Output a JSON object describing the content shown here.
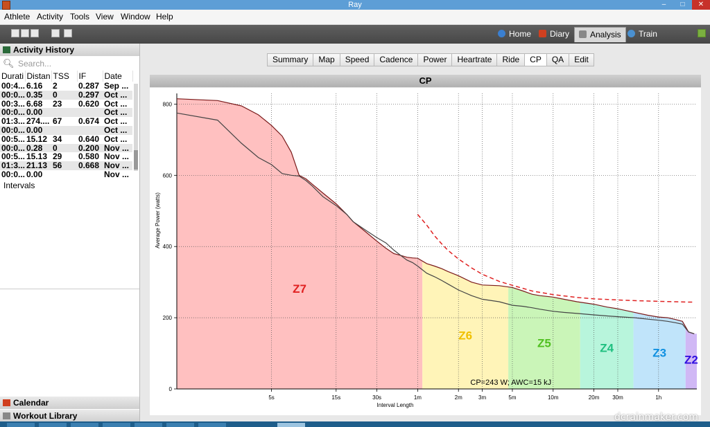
{
  "window": {
    "title": "Ray",
    "min": "–",
    "max": "□",
    "close": "✕"
  },
  "menu": [
    "Athlete",
    "Activity",
    "Tools",
    "View",
    "Window",
    "Help"
  ],
  "nav": {
    "home": "Home",
    "diary": "Diary",
    "analysis": "Analysis",
    "train": "Train"
  },
  "sidebar": {
    "activity_history": "Activity History",
    "search_placeholder": "Search...",
    "columns": [
      "Durati",
      "Distan",
      "TSS",
      "IF",
      "Date"
    ],
    "rows": [
      [
        "00:4...",
        "6.16",
        "2",
        "0.287",
        "Sep ..."
      ],
      [
        "00:0...",
        "0.35",
        "0",
        "0.297",
        "Oct ..."
      ],
      [
        "00:3...",
        "6.68",
        "23",
        "0.620",
        "Oct ..."
      ],
      [
        "00:0...",
        "0.00",
        "",
        "",
        "Oct ..."
      ],
      [
        "01:3...",
        "274....",
        "67",
        "0.674",
        "Oct ..."
      ],
      [
        "00:0...",
        "0.00",
        "",
        "",
        "Oct ..."
      ],
      [
        "00:5...",
        "15.12",
        "34",
        "0.640",
        "Oct ..."
      ],
      [
        "00:0...",
        "0.28",
        "0",
        "0.200",
        "Nov ..."
      ],
      [
        "00:5...",
        "15.13",
        "29",
        "0.580",
        "Nov ..."
      ],
      [
        "01:3...",
        "21.13",
        "56",
        "0.668",
        "Nov ..."
      ],
      [
        "00:0...",
        "0.00",
        "",
        "",
        "Nov ..."
      ]
    ],
    "intervals": "Intervals",
    "calendar": "Calendar",
    "workout_library": "Workout Library"
  },
  "tabs": [
    "Summary",
    "Map",
    "Speed",
    "Cadence",
    "Power",
    "Heartrate",
    "Ride",
    "CP",
    "QA",
    "Edit"
  ],
  "active_tab": "CP",
  "watermark": "dcrainmaker.com",
  "chart_data": {
    "type": "area",
    "title": "CP",
    "xlabel": "Interval Length",
    "ylabel": "Average Power (watts)",
    "x_scale": "log",
    "x_ticks": [
      "5s",
      "15s",
      "30s",
      "1m",
      "2m",
      "3m",
      "5m",
      "10m",
      "20m",
      "30m",
      "1h"
    ],
    "x_tick_seconds": [
      5,
      15,
      30,
      60,
      120,
      180,
      300,
      600,
      1200,
      1800,
      3600
    ],
    "xlim_seconds": [
      1,
      6900
    ],
    "y_ticks": [
      0,
      200,
      400,
      600,
      800
    ],
    "ylim": [
      0,
      830
    ],
    "grid": true,
    "annotation": "CP=243 W; AWC=15 kJ",
    "series": [
      {
        "name": "",
        "color": "#7a1a1a",
        "x": [
          1,
          2,
          3,
          4,
          5,
          6,
          7,
          8,
          9,
          10,
          12,
          15,
          18,
          20,
          25,
          30,
          35,
          40,
          45,
          50,
          55,
          60,
          70,
          80,
          90,
          100,
          120,
          150,
          180,
          240,
          300,
          360,
          420,
          480,
          600,
          720,
          900,
          1200,
          1500,
          1800,
          2400,
          3000,
          3600,
          4200,
          4800,
          5400,
          6000,
          6600
        ],
        "y": [
          815,
          810,
          795,
          770,
          740,
          710,
          665,
          600,
          590,
          575,
          550,
          520,
          490,
          470,
          440,
          415,
          395,
          380,
          375,
          370,
          368,
          367,
          352,
          345,
          338,
          330,
          318,
          300,
          292,
          290,
          285,
          275,
          266,
          262,
          258,
          252,
          245,
          238,
          230,
          225,
          215,
          207,
          202,
          200,
          195,
          190,
          160,
          155
        ]
      },
      {
        "name": "",
        "color": "#444444",
        "x": [
          1,
          2,
          3,
          4,
          5,
          6,
          7,
          8,
          9,
          10,
          12,
          15,
          18,
          20,
          25,
          30,
          35,
          40,
          45,
          50,
          55,
          60,
          70,
          80,
          90,
          100,
          120,
          150,
          180,
          240,
          300,
          360,
          420,
          480,
          600,
          720,
          900,
          1200,
          1500,
          1800,
          2400,
          3000,
          3600,
          4200,
          4800,
          5400,
          6000,
          6600
        ],
        "y": [
          775,
          755,
          690,
          650,
          630,
          605,
          600,
          598,
          585,
          570,
          540,
          515,
          490,
          470,
          445,
          425,
          410,
          390,
          375,
          362,
          355,
          345,
          325,
          315,
          305,
          295,
          278,
          262,
          252,
          245,
          235,
          232,
          228,
          224,
          218,
          215,
          212,
          208,
          205,
          203,
          200,
          196,
          193,
          190,
          186,
          182,
          160,
          155
        ]
      },
      {
        "name": "",
        "color": "#e02020",
        "dashed": true,
        "x": [
          60,
          70,
          80,
          90,
          100,
          120,
          150,
          180,
          240,
          300,
          420,
          600,
          900,
          1200,
          1800,
          2400,
          3600,
          4800,
          6000,
          6600
        ],
        "y": [
          490,
          460,
          430,
          408,
          390,
          365,
          340,
          322,
          302,
          291,
          275,
          265,
          257,
          253,
          250,
          248,
          246,
          245,
          244,
          244
        ]
      }
    ],
    "zones": [
      {
        "label": "Z7",
        "color": "#ffc0c0",
        "text_color": "#e02020",
        "x_end": 65
      },
      {
        "label": "Z6",
        "color": "#fff4b8",
        "text_color": "#f0c000",
        "x_end": 280
      },
      {
        "label": "Z5",
        "color": "#caf5b8",
        "text_color": "#50c020",
        "x_end": 950
      },
      {
        "label": "Z4",
        "color": "#b8f5dc",
        "text_color": "#20c080",
        "x_end": 2350
      },
      {
        "label": "Z3",
        "color": "#c0e4fa",
        "text_color": "#1090e0",
        "x_end": 5700
      },
      {
        "label": "Z2",
        "color": "#d0b8f5",
        "text_color": "#3010e0",
        "x_end": 6900
      }
    ]
  }
}
